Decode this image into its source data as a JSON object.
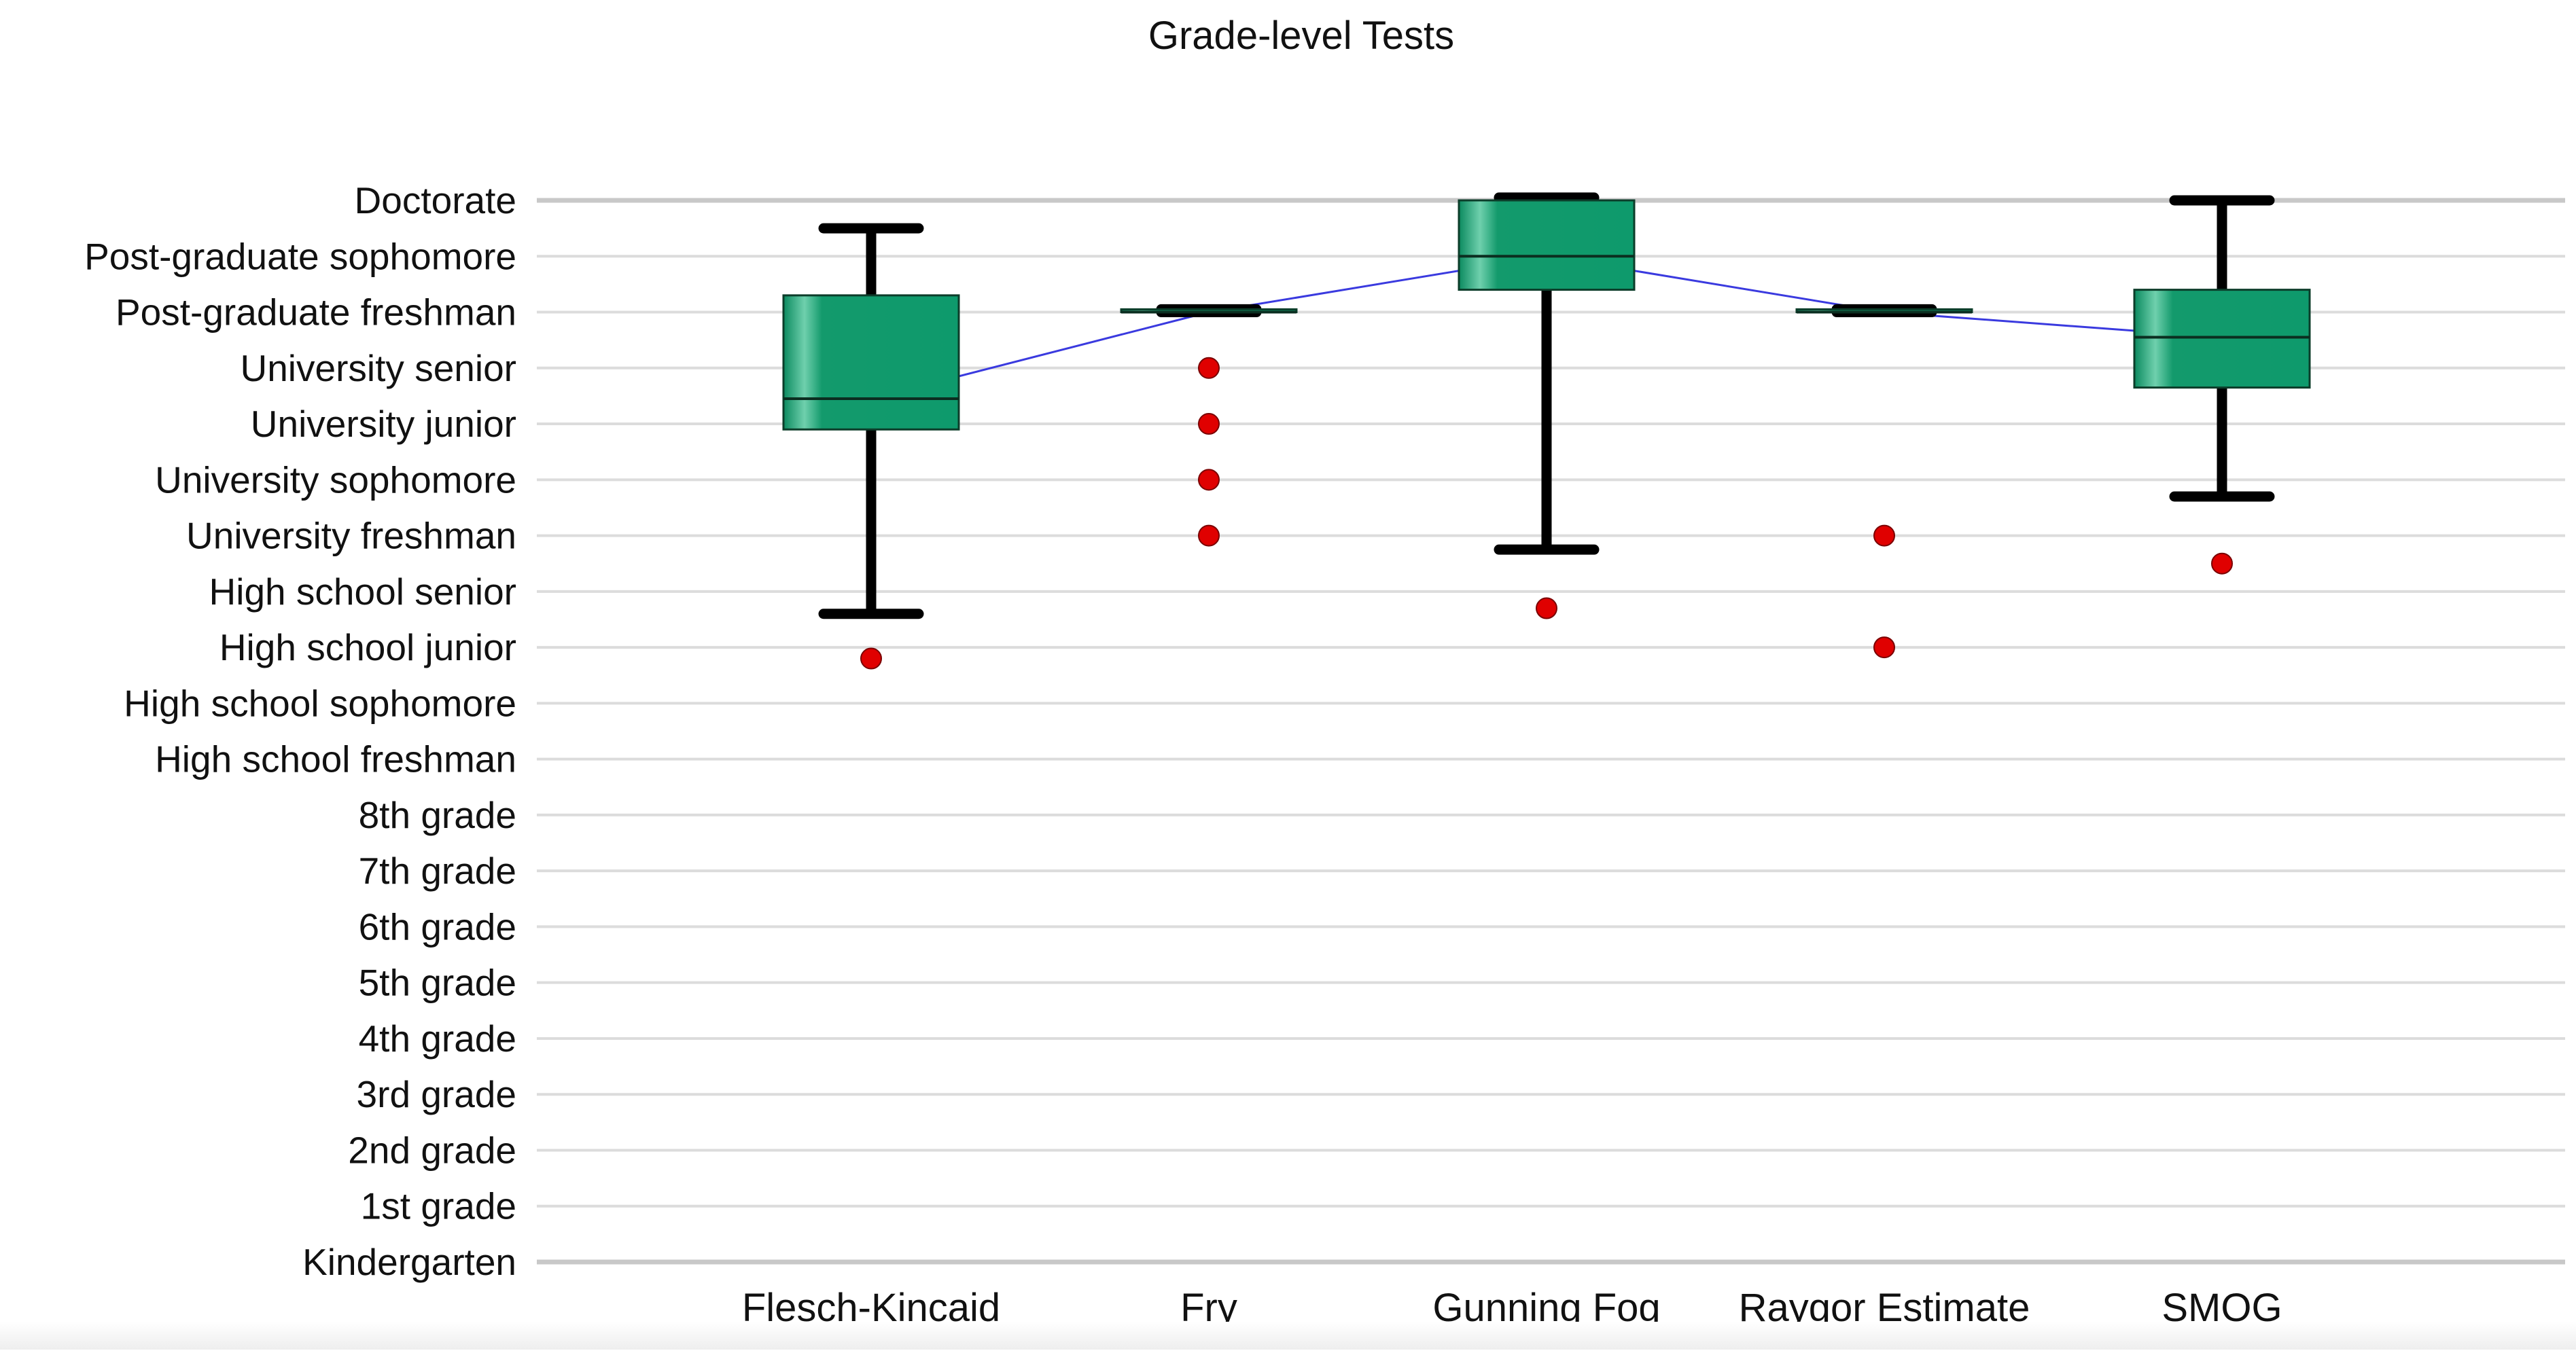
{
  "chart_data": {
    "type": "box",
    "title": "Grade-level Tests",
    "xlabel": "",
    "ylabel": "",
    "grid": true,
    "ylim": [
      0,
      19
    ],
    "y_categories": [
      "Kindergarten",
      "1st grade",
      "2nd grade",
      "3rd grade",
      "4th grade",
      "5th grade",
      "6th grade",
      "7th grade",
      "8th grade",
      "High school freshman",
      "High school sophomore",
      "High school junior",
      "High school senior",
      "University freshman",
      "University sophomore",
      "University junior",
      "University senior",
      "Post-graduate freshman",
      "Post-graduate sophomore",
      "Doctorate"
    ],
    "categories": [
      "Flesch-Kincaid",
      "Fry",
      "Gunning Fog",
      "Raygor Estimate",
      "SMOG"
    ],
    "series": [
      {
        "whisker_low": 11.6,
        "q1": 14.9,
        "median": 15.45,
        "q3": 17.3,
        "whisker_high": 18.5,
        "outliers": [
          10.8
        ]
      },
      {
        "whisker_low": 17.0,
        "q1": 17.0,
        "median": 17.0,
        "q3": 17.05,
        "whisker_high": 17.05,
        "outliers": [
          16.0,
          15.0,
          14.0,
          13.0
        ]
      },
      {
        "whisker_low": 12.75,
        "q1": 17.4,
        "median": 18.0,
        "q3": 19.0,
        "whisker_high": 19.05,
        "outliers": [
          11.7
        ]
      },
      {
        "whisker_low": 17.0,
        "q1": 17.0,
        "median": 17.0,
        "q3": 17.05,
        "whisker_high": 17.05,
        "outliers": [
          13.0,
          11.0
        ]
      },
      {
        "whisker_low": 13.7,
        "q1": 15.65,
        "median": 16.55,
        "q3": 17.4,
        "whisker_high": 19.0,
        "outliers": [
          12.5
        ]
      }
    ],
    "mean_line_color": "#3a3adf",
    "box_color": "#0e9a6c",
    "whisker_color": "#000000",
    "outlier_color": "#e00000"
  }
}
